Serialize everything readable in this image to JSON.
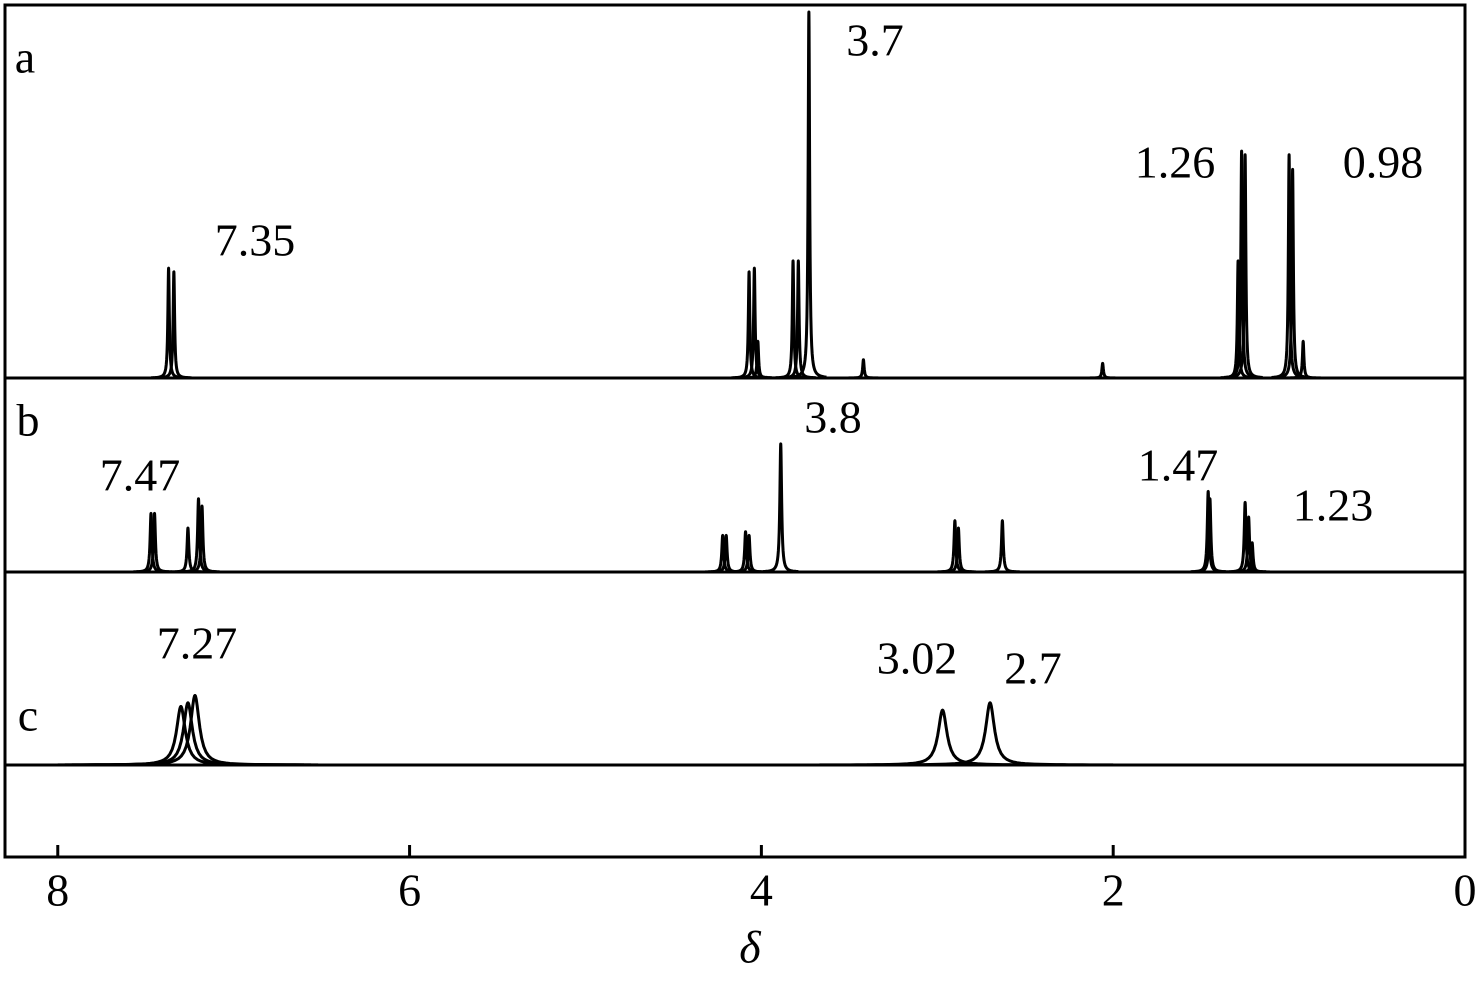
{
  "chart_data": {
    "type": "nmr-stack",
    "x_label": "δ",
    "xlim": [
      8.3,
      0
    ],
    "xticks": [
      8,
      6,
      4,
      2,
      0
    ],
    "color": "#000000",
    "series": [
      {
        "name": "a",
        "x": [
          7.37,
          7.34,
          4.07,
          4.04,
          4.02,
          3.82,
          3.79,
          3.73,
          3.42,
          2.06,
          1.29,
          1.27,
          1.25,
          1.0,
          0.98,
          0.92
        ],
        "values": [
          30,
          29,
          29,
          30,
          10,
          32,
          32,
          100,
          5,
          4,
          32,
          62,
          61,
          61,
          57,
          10
        ],
        "annotations": [
          "7.35",
          "3.7",
          "1.26",
          "0.98"
        ]
      },
      {
        "name": "b",
        "x": [
          7.47,
          7.45,
          7.26,
          7.2,
          7.18,
          4.22,
          4.2,
          4.09,
          4.07,
          3.89,
          2.9,
          2.88,
          2.63,
          1.46,
          1.45,
          1.25,
          1.23,
          1.21
        ],
        "values": [
          16,
          16,
          12,
          20,
          18,
          10,
          10,
          11,
          10,
          35,
          14,
          12,
          14,
          22,
          20,
          19,
          15,
          8
        ],
        "annotations": [
          "7.47",
          "3.8",
          "1.47",
          "1.23"
        ]
      },
      {
        "name": "c",
        "x": [
          7.3,
          7.26,
          7.22,
          2.97,
          2.7
        ],
        "values": [
          16,
          17,
          19,
          15,
          17
        ],
        "annotations": [
          "7.27",
          "3.02",
          "2.7"
        ]
      }
    ]
  }
}
